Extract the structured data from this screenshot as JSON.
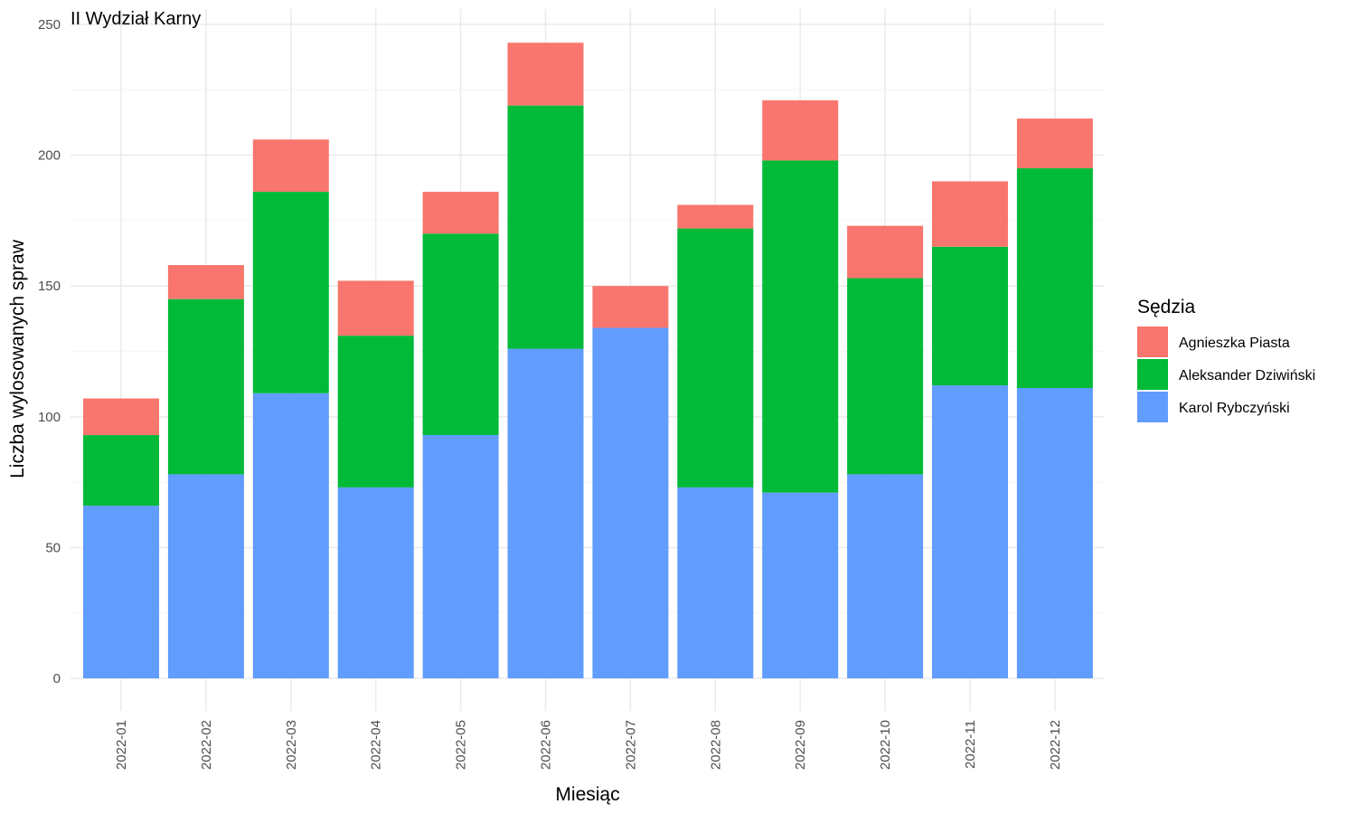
{
  "chart_data": {
    "type": "bar",
    "stacked": true,
    "title": "II Wydział Karny",
    "xlabel": "Miesiąc",
    "ylabel": "Liczba wylosowanych spraw",
    "ylim": [
      0,
      250
    ],
    "yticks": [
      0,
      50,
      100,
      150,
      200,
      250
    ],
    "grid": true,
    "legend_position": "right",
    "legend_title": "Sędzia",
    "categories": [
      "2022-01",
      "2022-02",
      "2022-03",
      "2022-04",
      "2022-05",
      "2022-06",
      "2022-07",
      "2022-08",
      "2022-09",
      "2022-10",
      "2022-11",
      "2022-12"
    ],
    "series": [
      {
        "name": "Karol Rybczyński",
        "color": "#619CFF",
        "values": [
          66,
          78,
          109,
          73,
          93,
          126,
          134,
          73,
          71,
          78,
          112,
          111
        ]
      },
      {
        "name": "Aleksander Dziwiński",
        "color": "#00BA38",
        "values": [
          27,
          67,
          77,
          58,
          77,
          93,
          0,
          99,
          127,
          75,
          53,
          84
        ]
      },
      {
        "name": "Agnieszka Piasta",
        "color": "#F8766D",
        "values": [
          14,
          13,
          20,
          21,
          16,
          24,
          16,
          9,
          23,
          20,
          25,
          19
        ]
      }
    ],
    "legend_order": [
      "Agnieszka Piasta",
      "Aleksander Dziwiński",
      "Karol Rybczyński"
    ]
  }
}
